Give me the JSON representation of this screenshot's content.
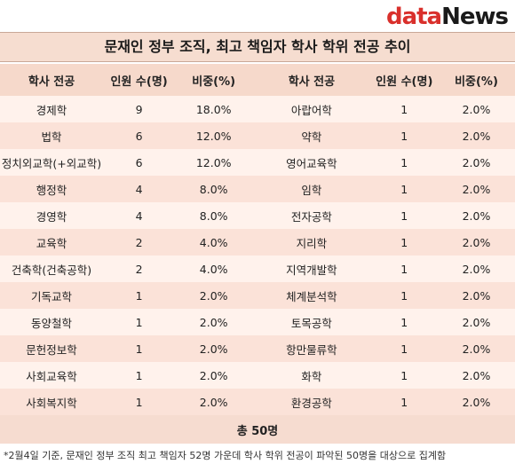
{
  "brand": {
    "part1": "data",
    "part2": "News"
  },
  "title": "문재인 정부 조직, 최고 책임자 학사 학위 전공 추이",
  "headers": [
    "학사 전공",
    "인원 수(명)",
    "비중(%)",
    "학사 전공",
    "인원 수(명)",
    "비중(%)"
  ],
  "rows": [
    [
      "경제학",
      "9",
      "18.0%",
      "아랍어학",
      "1",
      "2.0%"
    ],
    [
      "법학",
      "6",
      "12.0%",
      "약학",
      "1",
      "2.0%"
    ],
    [
      "정치외교학(+외교학)",
      "6",
      "12.0%",
      "영어교육학",
      "1",
      "2.0%"
    ],
    [
      "행정학",
      "4",
      "8.0%",
      "임학",
      "1",
      "2.0%"
    ],
    [
      "경영학",
      "4",
      "8.0%",
      "전자공학",
      "1",
      "2.0%"
    ],
    [
      "교육학",
      "2",
      "4.0%",
      "지리학",
      "1",
      "2.0%"
    ],
    [
      "건축학(건축공학)",
      "2",
      "4.0%",
      "지역개발학",
      "1",
      "2.0%"
    ],
    [
      "기독교학",
      "1",
      "2.0%",
      "체계분석학",
      "1",
      "2.0%"
    ],
    [
      "동양철학",
      "1",
      "2.0%",
      "토목공학",
      "1",
      "2.0%"
    ],
    [
      "문헌정보학",
      "1",
      "2.0%",
      "항만물류학",
      "1",
      "2.0%"
    ],
    [
      "사회교육학",
      "1",
      "2.0%",
      "화학",
      "1",
      "2.0%"
    ],
    [
      "사회복지학",
      "1",
      "2.0%",
      "환경공학",
      "1",
      "2.0%"
    ]
  ],
  "total": "총 50명",
  "footnote": "*2월4일 기준, 문재인 정부 조직 최고 책임자 52명 가운데 학사 학위 전공이 파악된 50명을 대상으로 집계함"
}
